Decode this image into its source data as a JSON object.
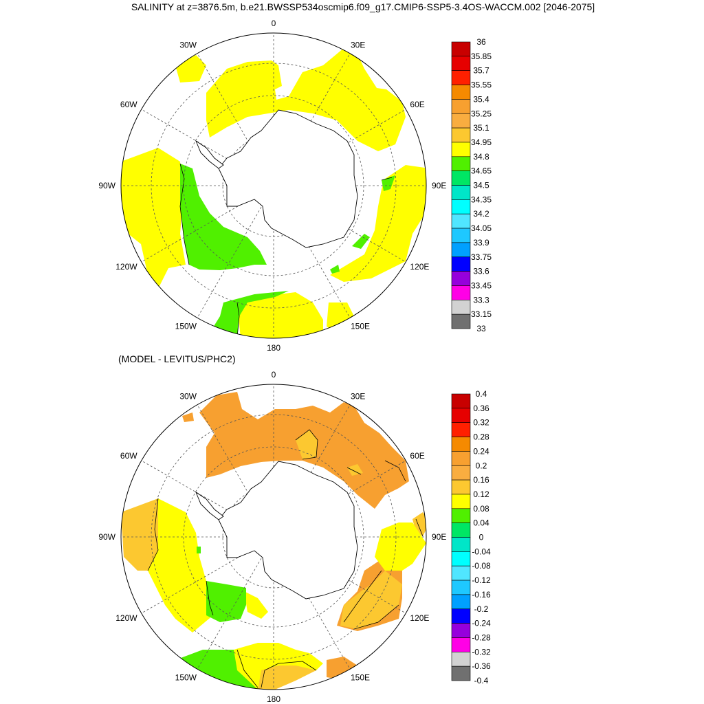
{
  "panels": [
    {
      "title": "SALINITY at z=3876.5m, b.e21.BWSSP534oscmip6.f09_g17.CMIP6-SSP5-3.4OS-WACCM.002 [2046-2075]",
      "lon_labels": [
        "0",
        "30E",
        "60E",
        "90E",
        "120E",
        "150E",
        "180",
        "150W",
        "120W",
        "90W",
        "60W",
        "30W"
      ],
      "colorbar_labels": [
        "36",
        "35.85",
        "35.7",
        "35.55",
        "35.4",
        "35.25",
        "35.1",
        "34.95",
        "34.8",
        "34.65",
        "34.5",
        "34.35",
        "34.2",
        "34.05",
        "33.9",
        "33.75",
        "33.6",
        "33.45",
        "33.3",
        "33.15",
        "33"
      ],
      "colorbar_colors": [
        "#c80000",
        "#e60000",
        "#ff2000",
        "#f58a00",
        "#f7a030",
        "#f9ad40",
        "#fcc830",
        "#ffff00",
        "#50f000",
        "#00e664",
        "#00e6c8",
        "#00ffff",
        "#50e6ff",
        "#1ec8ff",
        "#00a0ff",
        "#0000ff",
        "#9600dc",
        "#ff00e6",
        "#d2d2d2",
        "#707070"
      ]
    },
    {
      "title": "(MODEL - LEVITUS/PHC2)",
      "lon_labels": [
        "0",
        "30E",
        "60E",
        "90E",
        "120E",
        "150E",
        "180",
        "150W",
        "120W",
        "90W",
        "60W",
        "30W"
      ],
      "colorbar_labels": [
        "0.4",
        "0.36",
        "0.32",
        "0.28",
        "0.24",
        "0.2",
        "0.16",
        "0.12",
        "0.08",
        "0.04",
        "0",
        "-0.04",
        "-0.08",
        "-0.12",
        "-0.16",
        "-0.2",
        "-0.24",
        "-0.28",
        "-0.32",
        "-0.36",
        "-0.4"
      ],
      "colorbar_colors": [
        "#c80000",
        "#e60000",
        "#ff2000",
        "#f58a00",
        "#f7a030",
        "#f9ad40",
        "#fcc830",
        "#ffff00",
        "#50f000",
        "#00e664",
        "#00e6c8",
        "#00ffff",
        "#50e6ff",
        "#1ec8ff",
        "#00a0ff",
        "#0000ff",
        "#9600dc",
        "#ff00e6",
        "#d2d2d2",
        "#707070"
      ]
    }
  ],
  "field_colors": {
    "yellow": "#ffff00",
    "green": "#50f000",
    "orange": "#f7a030",
    "light_orange": "#fcc830"
  }
}
